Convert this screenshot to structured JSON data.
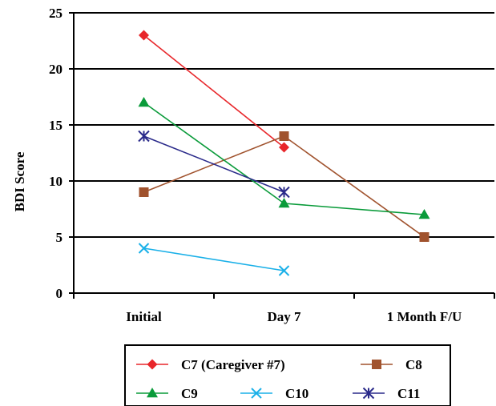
{
  "chart_data": {
    "type": "line",
    "ylabel": "BDI Score",
    "xlabel": "",
    "categories": [
      "Initial",
      "Day 7",
      "1 Month F/U"
    ],
    "ylim": [
      0,
      25
    ],
    "yticks": [
      "0",
      "5",
      "10",
      "15",
      "20",
      "25"
    ],
    "grid": "horizontal",
    "legend_position": "bottom",
    "series": [
      {
        "name": "C7 (Caregiver #7)",
        "values": [
          23,
          13,
          null
        ],
        "color": "#e8262a",
        "marker": "diamond"
      },
      {
        "name": "C8",
        "values": [
          9,
          14,
          5
        ],
        "color": "#a0522d",
        "marker": "square"
      },
      {
        "name": "C9",
        "values": [
          17,
          8,
          7
        ],
        "color": "#0a9b3a",
        "marker": "triangle"
      },
      {
        "name": "C10",
        "values": [
          4,
          2,
          null
        ],
        "color": "#1ab0e8",
        "marker": "x"
      },
      {
        "name": "C11",
        "values": [
          14,
          9,
          null
        ],
        "color": "#2a2a8a",
        "marker": "asterisk"
      }
    ]
  }
}
